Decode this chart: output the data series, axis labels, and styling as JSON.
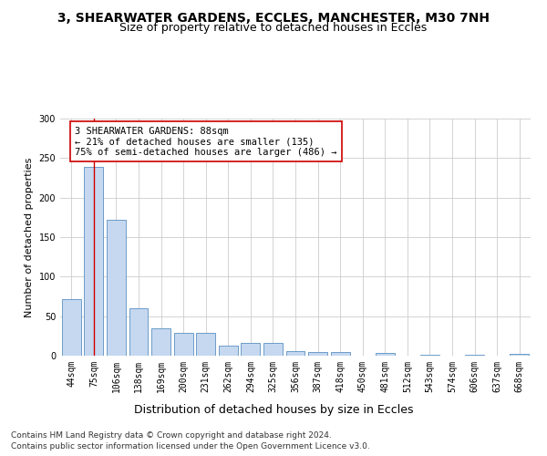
{
  "title_line1": "3, SHEARWATER GARDENS, ECCLES, MANCHESTER, M30 7NH",
  "title_line2": "Size of property relative to detached houses in Eccles",
  "xlabel": "Distribution of detached houses by size in Eccles",
  "ylabel": "Number of detached properties",
  "categories": [
    "44sqm",
    "75sqm",
    "106sqm",
    "138sqm",
    "169sqm",
    "200sqm",
    "231sqm",
    "262sqm",
    "294sqm",
    "325sqm",
    "356sqm",
    "387sqm",
    "418sqm",
    "450sqm",
    "481sqm",
    "512sqm",
    "543sqm",
    "574sqm",
    "606sqm",
    "637sqm",
    "668sqm"
  ],
  "values": [
    71,
    239,
    172,
    60,
    35,
    29,
    29,
    13,
    16,
    16,
    6,
    5,
    5,
    0,
    4,
    0,
    1,
    0,
    1,
    0,
    2
  ],
  "bar_color": "#c5d8f0",
  "bar_edge_color": "#5a8fc2",
  "highlight_bar_index": 1,
  "highlight_line_color": "#cc0000",
  "annotation_line1": "3 SHEARWATER GARDENS: 88sqm",
  "annotation_line2": "← 21% of detached houses are smaller (135)",
  "annotation_line3": "75% of semi-detached houses are larger (486) →",
  "annotation_box_color": "#ffffff",
  "annotation_box_edge_color": "#cc0000",
  "ylim": [
    0,
    300
  ],
  "yticks": [
    0,
    50,
    100,
    150,
    200,
    250,
    300
  ],
  "footer_line1": "Contains HM Land Registry data © Crown copyright and database right 2024.",
  "footer_line2": "Contains public sector information licensed under the Open Government Licence v3.0.",
  "title_fontsize": 10,
  "subtitle_fontsize": 9,
  "xlabel_fontsize": 9,
  "ylabel_fontsize": 8,
  "tick_fontsize": 7,
  "annotation_fontsize": 7.5,
  "footer_fontsize": 6.5,
  "background_color": "#ffffff",
  "grid_color": "#cccccc"
}
